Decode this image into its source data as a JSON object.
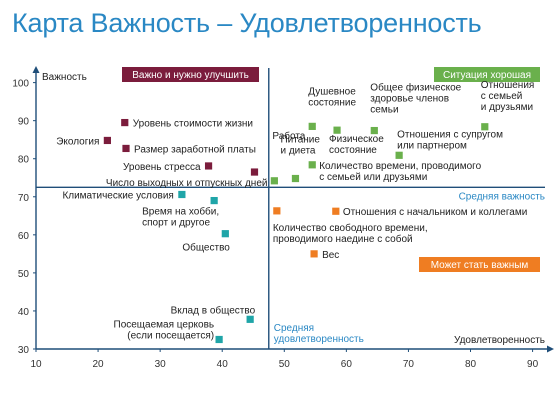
{
  "page": {
    "title": "Карта Важность – Удовлетворенность",
    "colors": {
      "title": "#2a88c4",
      "axis": "#1f4e79",
      "divider": "#1f4e79",
      "axis_label": "#222222"
    }
  },
  "chart_data": {
    "type": "scatter",
    "title": "Карта Важность – Удовлетворенность",
    "xlabel": "Удовлетворенность",
    "ylabel": "Важность",
    "xlim": [
      10,
      92
    ],
    "ylim": [
      30,
      102
    ],
    "xticks": [
      10,
      20,
      30,
      40,
      50,
      60,
      70,
      80,
      90
    ],
    "yticks": [
      30,
      40,
      50,
      60,
      70,
      80,
      90,
      100
    ],
    "grid": false,
    "mean_satisfaction": {
      "value": 47.5,
      "label": "Средняя удовлетворенность",
      "lines": [
        "Средняя",
        "удовлетворенность"
      ]
    },
    "mean_importance": {
      "value": 72.5,
      "label": "Средняя важность"
    },
    "quadrants": [
      {
        "label": "Важно и нужно улучшить",
        "color": "#7b1c3c",
        "position": "top-left"
      },
      {
        "label": "Ситуация хорошая",
        "color": "#6ab04c",
        "position": "top-right"
      },
      {
        "label": "Может стать важным",
        "color": "#ef7d22",
        "position": "bottom-right"
      }
    ],
    "series": [
      {
        "color": "#7b1c3c",
        "points": [
          {
            "label": "Уровень стоимости жизни",
            "lines": [
              "Уровень стоимости жизни"
            ],
            "x": 24.3,
            "y": 89.5,
            "anchor": "end-right"
          },
          {
            "label": "Экология",
            "lines": [
              "Экология"
            ],
            "x": 21.5,
            "y": 84.8,
            "anchor": "left"
          },
          {
            "label": "Размер заработной платы",
            "lines": [
              "Размер заработной платы"
            ],
            "x": 24.5,
            "y": 82.7,
            "anchor": "end-right"
          },
          {
            "label": "Уровень стресса",
            "lines": [
              "Уровень стресса"
            ],
            "x": 37.8,
            "y": 78.1,
            "anchor": "left"
          },
          {
            "label": "Число выходных и отпускных дней",
            "lines": [
              "Число выходных и отпускных дней"
            ],
            "x": 45.2,
            "y": 76.5,
            "anchor": "below-left"
          }
        ]
      },
      {
        "color": "#6ab04c",
        "points": [
          {
            "label": "Работа",
            "lines": [
              "Работа"
            ],
            "x": 48.4,
            "y": 74.2,
            "anchor": "custom"
          },
          {
            "label": "Питание и диета",
            "lines": [
              "Питание",
              "и диета"
            ],
            "x": 51.8,
            "y": 74.8,
            "anchor": "custom"
          },
          {
            "label": "Душевное состояние",
            "lines": [
              "Душевное",
              "состояние"
            ],
            "x": 54.5,
            "y": 88.5,
            "anchor": "custom"
          },
          {
            "label": "Физическое состояние",
            "lines": [
              "Физическое",
              "состояние"
            ],
            "x": 58.5,
            "y": 87.5,
            "anchor": "custom"
          },
          {
            "label": "Количество времени, проводимого с семьей или друзьями",
            "lines": [
              "Количество времени, проводимого",
              "с семьей или друзьями"
            ],
            "x": 54.5,
            "y": 78.4,
            "anchor": "custom"
          },
          {
            "label": "Общее физическое здоровье членов семьи",
            "lines": [
              "Общее физическое",
              "здоровье членов",
              "семьи"
            ],
            "x": 64.5,
            "y": 87.4,
            "anchor": "custom"
          },
          {
            "label": "Отношения с супругом или партнером",
            "lines": [
              "Отношения с супругом",
              "или партнером"
            ],
            "x": 68.5,
            "y": 80.9,
            "anchor": "custom"
          },
          {
            "label": "Отношения с семьей и друзьями",
            "lines": [
              "Отношения",
              "с семьей",
              "и друзьями"
            ],
            "x": 82.3,
            "y": 88.4,
            "anchor": "custom"
          }
        ]
      },
      {
        "color": "#1fa5a8",
        "points": [
          {
            "label": "Климатические условия",
            "lines": [
              "Климатические условия"
            ],
            "x": 33.5,
            "y": 70.6,
            "anchor": "left"
          },
          {
            "label": "Время на хобби, спорт и другое",
            "lines": [
              "Время на хобби,",
              "спорт и другое"
            ],
            "x": 38.7,
            "y": 69.0,
            "anchor": "custom"
          },
          {
            "label": "Общество",
            "lines": [
              "Общество"
            ],
            "x": 40.5,
            "y": 60.3,
            "anchor": "custom"
          },
          {
            "label": "Вклад в общество",
            "lines": [
              "Вклад в общество"
            ],
            "x": 44.5,
            "y": 37.8,
            "anchor": "custom"
          },
          {
            "label": "Посещаемая церковь (если посещается)",
            "lines": [
              "Посещаемая церковь",
              "(если посещается)"
            ],
            "x": 39.5,
            "y": 32.5,
            "anchor": "custom"
          }
        ]
      },
      {
        "color": "#ef7d22",
        "points": [
          {
            "label": "Количество свободного времени, проводимого наедине с собой",
            "lines": [
              "Количество свободного времени,",
              "проводимого наедине с собой"
            ],
            "x": 48.8,
            "y": 66.3,
            "anchor": "custom"
          },
          {
            "label": "Отношения с начальником и коллегами",
            "lines": [
              "Отношения с начальником и коллегами"
            ],
            "x": 58.3,
            "y": 66.2,
            "anchor": "custom"
          },
          {
            "label": "Вес",
            "lines": [
              "Вес"
            ],
            "x": 54.8,
            "y": 55.0,
            "anchor": "custom"
          }
        ]
      }
    ]
  }
}
